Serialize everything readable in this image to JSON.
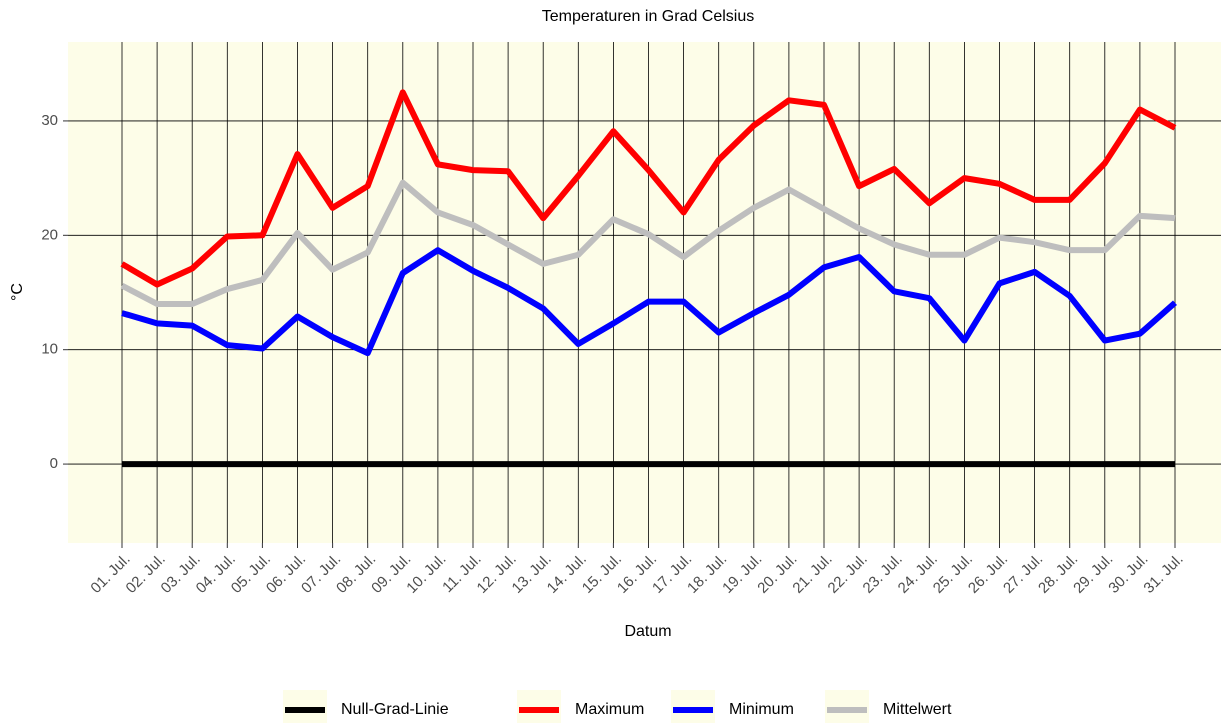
{
  "chart_data": {
    "type": "line",
    "title": "Temperaturen in Grad Celsius",
    "x_label": "Datum",
    "y_label": "°C",
    "categories": [
      "01. Jul.",
      "02. Jul.",
      "03. Jul.",
      "04. Jul.",
      "05. Jul.",
      "06. Jul.",
      "07. Jul.",
      "08. Jul.",
      "09. Jul.",
      "10. Jul.",
      "11. Jul.",
      "12. Jul.",
      "13. Jul.",
      "14. Jul.",
      "15. Jul.",
      "16. Jul.",
      "17. Jul.",
      "18. Jul.",
      "19. Jul.",
      "20. Jul.",
      "21. Jul.",
      "22. Jul.",
      "23. Jul.",
      "24. Jul.",
      "25. Jul.",
      "26. Jul.",
      "27. Jul.",
      "28. Jul.",
      "29. Jul.",
      "30. Jul.",
      "31. Jul."
    ],
    "series": [
      {
        "name": "Null-Grad-Linie",
        "color": "#000000",
        "values": [
          0,
          0,
          0,
          0,
          0,
          0,
          0,
          0,
          0,
          0,
          0,
          0,
          0,
          0,
          0,
          0,
          0,
          0,
          0,
          0,
          0,
          0,
          0,
          0,
          0,
          0,
          0,
          0,
          0,
          0,
          0
        ]
      },
      {
        "name": "Maximum",
        "color": "#ff0000",
        "values": [
          17.5,
          15.7,
          17.1,
          19.9,
          20.0,
          27.1,
          22.4,
          24.3,
          32.5,
          26.2,
          25.7,
          25.6,
          21.5,
          25.2,
          29.1,
          25.7,
          22.0,
          26.6,
          29.6,
          31.8,
          31.4,
          24.3,
          25.8,
          22.8,
          25.0,
          24.5,
          23.1,
          23.1,
          26.3,
          31.0,
          29.4
        ]
      },
      {
        "name": "Minimum",
        "color": "#0000ff",
        "values": [
          13.2,
          12.3,
          12.1,
          10.4,
          10.1,
          12.9,
          11.1,
          9.7,
          16.7,
          18.7,
          16.9,
          15.4,
          13.6,
          10.5,
          12.3,
          14.2,
          14.2,
          11.5,
          13.2,
          14.8,
          17.2,
          18.1,
          15.1,
          14.5,
          10.8,
          15.8,
          16.8,
          14.7,
          10.8,
          11.4,
          14.1
        ]
      },
      {
        "name": "Mittelwert",
        "color": "#bebebe",
        "values": [
          15.6,
          14.0,
          14.0,
          15.3,
          16.1,
          20.2,
          17.0,
          18.5,
          24.6,
          22.0,
          20.9,
          19.2,
          17.5,
          18.3,
          21.4,
          20.1,
          18.1,
          20.4,
          22.4,
          24.0,
          22.3,
          20.6,
          19.2,
          18.3,
          18.3,
          19.8,
          19.4,
          18.7,
          18.7,
          21.7,
          21.5
        ]
      }
    ],
    "ylim": [
      -6.9,
      36.9
    ],
    "yticks": [
      0,
      10,
      20,
      30
    ],
    "grid": true,
    "legend": "bottom"
  }
}
